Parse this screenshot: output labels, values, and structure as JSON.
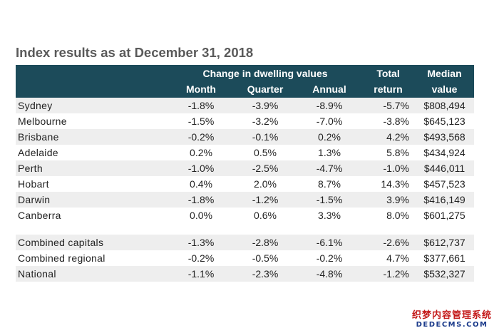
{
  "title": "Index results as at December 31, 2018",
  "header": {
    "group_label": "Change in dwelling values",
    "total_line1": "Total",
    "total_line2": "return",
    "median_line1": "Median",
    "median_line2": "value",
    "month": "Month",
    "quarter": "Quarter",
    "annual": "Annual"
  },
  "rows": [
    {
      "name": "Sydney",
      "month": "-1.8%",
      "quarter": "-3.9%",
      "annual": "-8.9%",
      "total": "-5.7%",
      "median": "$808,494"
    },
    {
      "name": "Melbourne",
      "month": "-1.5%",
      "quarter": "-3.2%",
      "annual": "-7.0%",
      "total": "-3.8%",
      "median": "$645,123"
    },
    {
      "name": "Brisbane",
      "month": "-0.2%",
      "quarter": "-0.1%",
      "annual": "0.2%",
      "total": "4.2%",
      "median": "$493,568"
    },
    {
      "name": "Adelaide",
      "month": "0.2%",
      "quarter": "0.5%",
      "annual": "1.3%",
      "total": "5.8%",
      "median": "$434,924"
    },
    {
      "name": "Perth",
      "month": "-1.0%",
      "quarter": "-2.5%",
      "annual": "-4.7%",
      "total": "-1.0%",
      "median": "$446,011"
    },
    {
      "name": "Hobart",
      "month": "0.4%",
      "quarter": "2.0%",
      "annual": "8.7%",
      "total": "14.3%",
      "median": "$457,523"
    },
    {
      "name": "Darwin",
      "month": "-1.8%",
      "quarter": "-1.2%",
      "annual": "-1.5%",
      "total": "3.9%",
      "median": "$416,149"
    },
    {
      "name": "Canberra",
      "month": "0.0%",
      "quarter": "0.6%",
      "annual": "3.3%",
      "total": "8.0%",
      "median": "$601,275"
    },
    {
      "name": "Combined capitals",
      "month": "-1.3%",
      "quarter": "-2.8%",
      "annual": "-6.1%",
      "total": "-2.6%",
      "median": "$612,737"
    },
    {
      "name": "Combined regional",
      "month": "-0.2%",
      "quarter": "-0.5%",
      "annual": "-0.2%",
      "total": "4.7%",
      "median": "$377,661"
    },
    {
      "name": "National",
      "month": "-1.1%",
      "quarter": "-2.3%",
      "annual": "-4.8%",
      "total": "-1.2%",
      "median": "$532,327"
    }
  ],
  "watermark": {
    "line1": "织梦内容管理系统",
    "line2": "DEDECMS.COM"
  }
}
